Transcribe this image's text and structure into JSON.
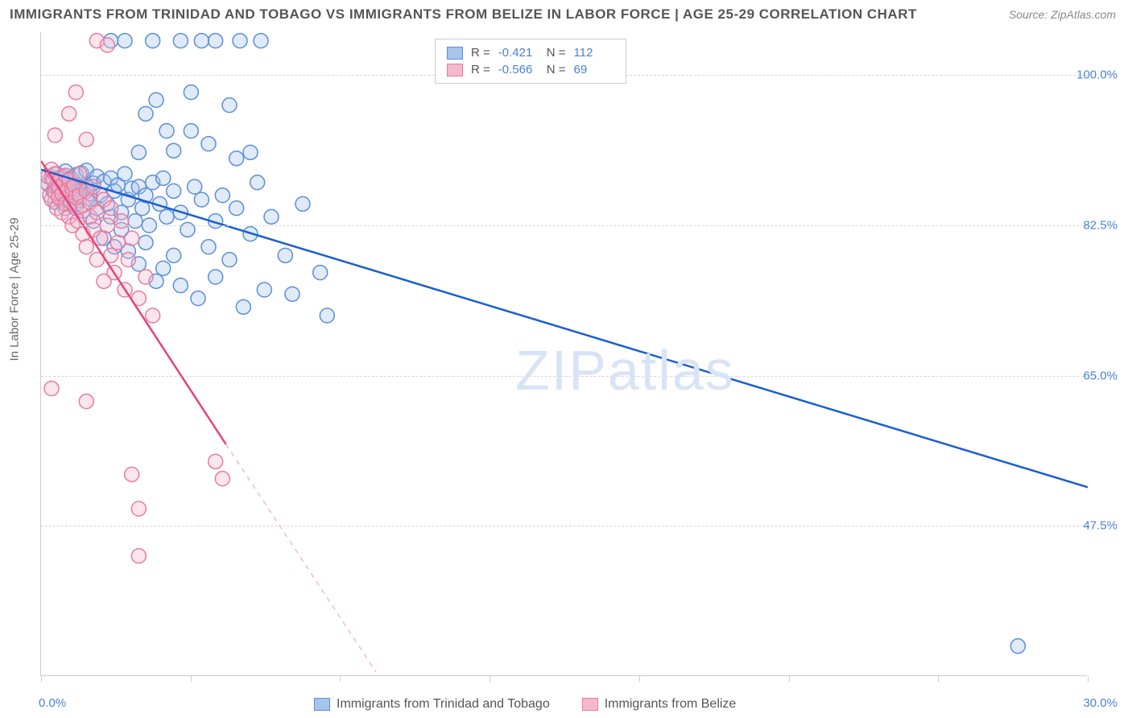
{
  "title": "IMMIGRANTS FROM TRINIDAD AND TOBAGO VS IMMIGRANTS FROM BELIZE IN LABOR FORCE | AGE 25-29 CORRELATION CHART",
  "source_label": "Source: ZipAtlas.com",
  "watermark": "ZIPatlas",
  "y_axis_label": "In Labor Force | Age 25-29",
  "chart": {
    "type": "scatter-correlation",
    "xlim": [
      0,
      30
    ],
    "ylim": [
      30,
      105
    ],
    "x_tick_label_min": "0.0%",
    "x_tick_label_max": "30.0%",
    "x_ticks": [
      0,
      4.29,
      8.57,
      12.86,
      17.14,
      21.43,
      25.71,
      30
    ],
    "y_ticks": [
      {
        "v": 100.0,
        "label": "100.0%"
      },
      {
        "v": 82.5,
        "label": "82.5%"
      },
      {
        "v": 65.0,
        "label": "65.0%"
      },
      {
        "v": 47.5,
        "label": "47.5%"
      }
    ],
    "background_color": "#ffffff",
    "grid_color": "#d5d5d5",
    "axis_color": "#cccccc",
    "tick_label_color": "#4a7fd8",
    "marker_radius": 9,
    "marker_stroke_width": 1.5,
    "marker_fill_opacity": 0.35,
    "trend_line_width": 2.5,
    "series": [
      {
        "name": "Immigrants from Trinidad and Tobago",
        "color_stroke": "#5a8fd8",
        "color_fill": "#a6c4ec",
        "trend_color": "#1a5fd0",
        "R": "-0.421",
        "N": "112",
        "trend": {
          "x1": 0,
          "y1": 89,
          "x2": 30,
          "y2": 52
        },
        "points": [
          [
            0.2,
            87.3
          ],
          [
            0.3,
            88.1
          ],
          [
            0.35,
            86.5
          ],
          [
            0.4,
            87.0
          ],
          [
            0.4,
            85.2
          ],
          [
            0.45,
            88.5
          ],
          [
            0.5,
            86.8
          ],
          [
            0.5,
            87.9
          ],
          [
            0.55,
            85.5
          ],
          [
            0.6,
            88.2
          ],
          [
            0.6,
            86.0
          ],
          [
            0.65,
            87.4
          ],
          [
            0.7,
            84.5
          ],
          [
            0.7,
            88.8
          ],
          [
            0.75,
            86.2
          ],
          [
            0.8,
            87.6
          ],
          [
            0.8,
            85.0
          ],
          [
            0.85,
            88.0
          ],
          [
            0.9,
            86.4
          ],
          [
            0.9,
            87.8
          ],
          [
            0.95,
            84.8
          ],
          [
            1.0,
            88.4
          ],
          [
            1.0,
            86.6
          ],
          [
            1.05,
            87.2
          ],
          [
            1.1,
            85.4
          ],
          [
            1.15,
            88.6
          ],
          [
            1.2,
            86.8
          ],
          [
            1.2,
            84.2
          ],
          [
            1.3,
            87.0
          ],
          [
            1.3,
            88.9
          ],
          [
            1.4,
            85.6
          ],
          [
            1.4,
            86.2
          ],
          [
            1.5,
            87.4
          ],
          [
            1.5,
            83.0
          ],
          [
            1.6,
            88.2
          ],
          [
            1.6,
            84.5
          ],
          [
            1.7,
            86.0
          ],
          [
            1.8,
            87.6
          ],
          [
            1.8,
            81.0
          ],
          [
            1.9,
            85.0
          ],
          [
            2.0,
            88.0
          ],
          [
            2.0,
            83.5
          ],
          [
            2.1,
            86.5
          ],
          [
            2.1,
            80.0
          ],
          [
            2.2,
            87.2
          ],
          [
            2.3,
            84.0
          ],
          [
            2.3,
            82.0
          ],
          [
            2.4,
            88.5
          ],
          [
            2.5,
            85.5
          ],
          [
            2.5,
            79.5
          ],
          [
            2.6,
            86.8
          ],
          [
            2.7,
            83.0
          ],
          [
            2.8,
            87.0
          ],
          [
            2.8,
            78.0
          ],
          [
            2.9,
            84.5
          ],
          [
            3.0,
            86.0
          ],
          [
            3.0,
            80.5
          ],
          [
            3.1,
            82.5
          ],
          [
            3.2,
            87.5
          ],
          [
            3.3,
            76.0
          ],
          [
            3.4,
            85.0
          ],
          [
            3.5,
            88.0
          ],
          [
            3.5,
            77.5
          ],
          [
            3.6,
            83.5
          ],
          [
            3.8,
            86.5
          ],
          [
            3.8,
            79.0
          ],
          [
            4.0,
            84.0
          ],
          [
            4.0,
            75.5
          ],
          [
            4.2,
            82.0
          ],
          [
            4.4,
            87.0
          ],
          [
            4.5,
            74.0
          ],
          [
            4.6,
            85.5
          ],
          [
            4.8,
            80.0
          ],
          [
            5.0,
            83.0
          ],
          [
            5.0,
            76.5
          ],
          [
            5.2,
            86.0
          ],
          [
            5.4,
            78.5
          ],
          [
            5.6,
            84.5
          ],
          [
            5.8,
            73.0
          ],
          [
            6.0,
            81.5
          ],
          [
            6.2,
            87.5
          ],
          [
            6.4,
            75.0
          ],
          [
            6.6,
            83.5
          ],
          [
            7.0,
            79.0
          ],
          [
            7.2,
            74.5
          ],
          [
            7.5,
            85.0
          ],
          [
            8.0,
            77.0
          ],
          [
            8.2,
            72.0
          ],
          [
            2.0,
            104.0
          ],
          [
            2.4,
            104.0
          ],
          [
            2.8,
            91
          ],
          [
            3.0,
            95.5
          ],
          [
            3.2,
            104.0
          ],
          [
            3.6,
            93.5
          ],
          [
            4.0,
            104.0
          ],
          [
            4.3,
            98.0
          ],
          [
            4.6,
            104.0
          ],
          [
            4.8,
            92.0
          ],
          [
            5.0,
            104.0
          ],
          [
            5.4,
            96.5
          ],
          [
            5.7,
            104.0
          ],
          [
            6.0,
            91.0
          ],
          [
            6.3,
            104.0
          ],
          [
            3.8,
            91.2
          ],
          [
            4.3,
            93.5
          ],
          [
            5.6,
            90.3
          ],
          [
            3.3,
            97.1
          ],
          [
            28.0,
            33.5
          ]
        ]
      },
      {
        "name": "Immigrants from Belize",
        "color_stroke": "#e87ba0",
        "color_fill": "#f5b8cc",
        "trend_color": "#e8427a",
        "R": "-0.566",
        "N": "69",
        "trend_solid": {
          "x1": 0,
          "y1": 90,
          "x2": 5.3,
          "y2": 57
        },
        "trend_dash": {
          "x1": 5.3,
          "y1": 57,
          "x2": 9.6,
          "y2": 30.5
        },
        "points": [
          [
            0.15,
            87.5
          ],
          [
            0.2,
            88.2
          ],
          [
            0.25,
            86.0
          ],
          [
            0.3,
            89.0
          ],
          [
            0.3,
            85.5
          ],
          [
            0.35,
            87.8
          ],
          [
            0.4,
            86.4
          ],
          [
            0.4,
            88.5
          ],
          [
            0.45,
            84.5
          ],
          [
            0.5,
            87.0
          ],
          [
            0.5,
            85.8
          ],
          [
            0.55,
            88.0
          ],
          [
            0.6,
            86.2
          ],
          [
            0.6,
            84.0
          ],
          [
            0.65,
            87.4
          ],
          [
            0.7,
            85.0
          ],
          [
            0.7,
            88.3
          ],
          [
            0.75,
            86.6
          ],
          [
            0.8,
            83.5
          ],
          [
            0.8,
            87.8
          ],
          [
            0.85,
            85.2
          ],
          [
            0.9,
            86.8
          ],
          [
            0.9,
            82.5
          ],
          [
            0.95,
            87.2
          ],
          [
            1.0,
            84.5
          ],
          [
            1.0,
            85.8
          ],
          [
            1.05,
            83.0
          ],
          [
            1.1,
            86.0
          ],
          [
            1.1,
            88.5
          ],
          [
            1.2,
            81.5
          ],
          [
            1.2,
            84.8
          ],
          [
            1.3,
            86.5
          ],
          [
            1.3,
            80.0
          ],
          [
            1.4,
            83.5
          ],
          [
            1.4,
            85.2
          ],
          [
            1.5,
            82.0
          ],
          [
            1.5,
            87.0
          ],
          [
            1.6,
            78.5
          ],
          [
            1.6,
            84.0
          ],
          [
            1.7,
            81.0
          ],
          [
            1.8,
            85.5
          ],
          [
            1.8,
            76.0
          ],
          [
            1.9,
            82.5
          ],
          [
            2.0,
            79.0
          ],
          [
            2.0,
            84.5
          ],
          [
            2.1,
            77.0
          ],
          [
            2.2,
            80.5
          ],
          [
            2.3,
            83.0
          ],
          [
            2.4,
            75.0
          ],
          [
            2.5,
            78.5
          ],
          [
            2.6,
            81.0
          ],
          [
            2.8,
            74.0
          ],
          [
            3.0,
            76.5
          ],
          [
            3.2,
            72.0
          ],
          [
            0.4,
            93.0
          ],
          [
            0.8,
            95.5
          ],
          [
            1.0,
            98.0
          ],
          [
            1.3,
            92.5
          ],
          [
            1.6,
            104.0
          ],
          [
            1.9,
            103.5
          ],
          [
            0.3,
            63.5
          ],
          [
            1.3,
            62.0
          ],
          [
            2.6,
            53.5
          ],
          [
            2.8,
            49.5
          ],
          [
            5.0,
            55.0
          ],
          [
            5.2,
            53.0
          ],
          [
            2.8,
            44.0
          ]
        ]
      }
    ]
  }
}
